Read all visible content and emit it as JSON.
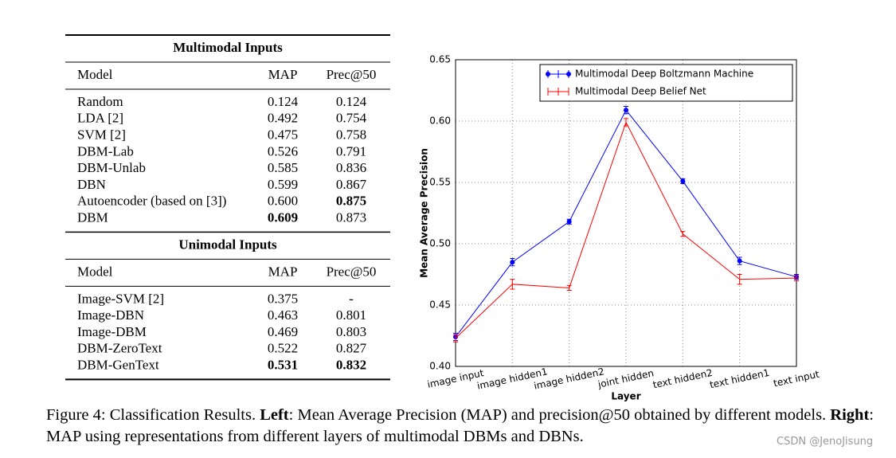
{
  "table": {
    "sections": [
      {
        "title": "Multimodal Inputs",
        "header": [
          "Model",
          "MAP",
          "Prec@50"
        ],
        "rows": [
          [
            "Random",
            "0.124",
            "0.124"
          ],
          [
            "LDA [2]",
            "0.492",
            "0.754"
          ],
          [
            "SVM [2]",
            "0.475",
            "0.758"
          ],
          [
            "DBM-Lab",
            "0.526",
            "0.791"
          ],
          [
            "DBM-Unlab",
            "0.585",
            "0.836"
          ],
          [
            "DBN",
            "0.599",
            "0.867"
          ],
          [
            "Autoencoder (based on [3])",
            "0.600",
            "0.875"
          ],
          [
            "DBM",
            "0.609",
            "0.873"
          ]
        ],
        "bold": [
          [
            6,
            2
          ],
          [
            7,
            1
          ]
        ]
      },
      {
        "title": "Unimodal Inputs",
        "header": [
          "Model",
          "MAP",
          "Prec@50"
        ],
        "rows": [
          [
            "Image-SVM [2]",
            "0.375",
            "-"
          ],
          [
            "Image-DBN",
            "0.463",
            "0.801"
          ],
          [
            "Image-DBM",
            "0.469",
            "0.803"
          ],
          [
            "DBM-ZeroText",
            "0.522",
            "0.827"
          ],
          [
            "DBM-GenText",
            "0.531",
            "0.832"
          ]
        ],
        "bold": [
          [
            4,
            1
          ],
          [
            4,
            2
          ]
        ]
      }
    ]
  },
  "chart_data": {
    "type": "line",
    "xlabel": "Layer",
    "ylabel": "Mean Average Precision",
    "categories": [
      "image input",
      "image hidden1",
      "image hidden2",
      "joint hidden",
      "text hidden2",
      "text hidden1",
      "text input"
    ],
    "series": [
      {
        "name": "Multimodal Deep Boltzmann Machine",
        "color": "#0000ff",
        "marker": "o",
        "values": [
          0.424,
          0.485,
          0.518,
          0.609,
          0.551,
          0.486,
          0.473
        ],
        "errors": [
          0.003,
          0.003,
          0.002,
          0.003,
          0.002,
          0.003,
          0.002
        ]
      },
      {
        "name": "Multimodal Deep Belief Net",
        "color": "#ff0000",
        "marker": "none",
        "values": [
          0.423,
          0.467,
          0.464,
          0.599,
          0.508,
          0.471,
          0.472
        ],
        "errors": [
          0.003,
          0.004,
          0.002,
          0.003,
          0.002,
          0.004,
          0.002
        ]
      }
    ],
    "ylim": [
      0.4,
      0.65
    ],
    "yticks": [
      {
        "value": 0.4,
        "label": "0.40"
      },
      0.45,
      {
        "value": 0.5,
        "label": "0.50"
      },
      0.55,
      {
        "value": 0.6,
        "label": "0.60"
      },
      0.65
    ],
    "grid": true,
    "legend": "upper right"
  },
  "caption": {
    "parts": [
      "Figure 4: Classification Results. ",
      "Left",
      ": Mean Average Precision (MAP) and precision@50 obtained by different models. ",
      "Right",
      ": MAP using representations from different layers of multimodal DBMs and DBNs."
    ],
    "bold": [
      1,
      3
    ]
  },
  "watermark": "CSDN @JenoJisung"
}
